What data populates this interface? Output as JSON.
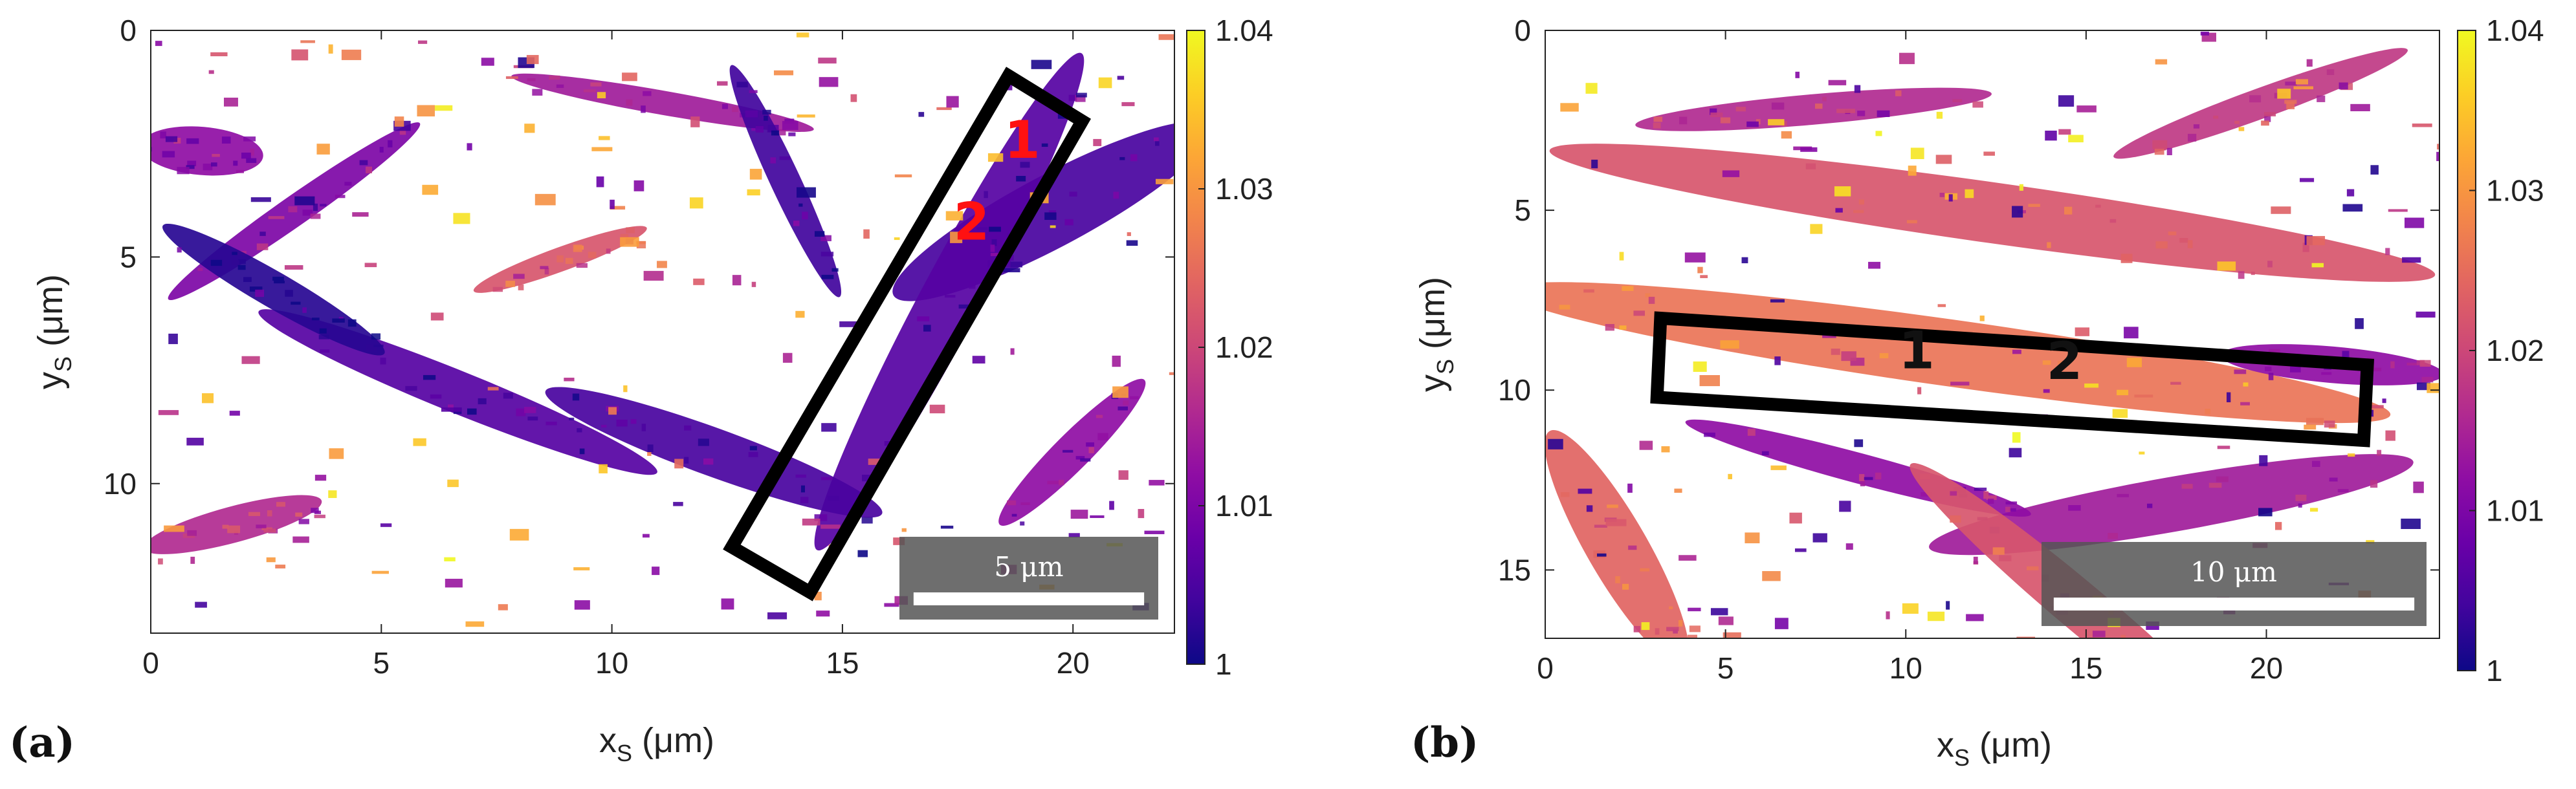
{
  "colors": {
    "text": "#222222",
    "marker_a": "#ff1111",
    "marker_b": "#111111",
    "scalebar_bg": "#555555",
    "colormap": [
      "#0d0887",
      "#41049d",
      "#6a00a8",
      "#8f0da4",
      "#b12a90",
      "#cc4778",
      "#e16462",
      "#f2844b",
      "#fca636",
      "#fcce25",
      "#f0f921"
    ]
  },
  "chart_data": [
    {
      "type": "heatmap",
      "panel_label": "(a)",
      "title": "",
      "xlabel": "x",
      "xlabel_sub": "S",
      "xlabel_unit": " (μm)",
      "ylabel": "y",
      "ylabel_sub": "S",
      "ylabel_unit": " (μm)",
      "xlim": [
        0,
        22.2
      ],
      "ylim": [
        0,
        13.3
      ],
      "y_inverted": true,
      "x_ticks": [
        "0",
        "5",
        "10",
        "15",
        "20"
      ],
      "y_ticks": [
        "0",
        "5",
        "10"
      ],
      "colorbar": {
        "range": [
          1,
          1.04
        ],
        "ticks": [
          "1",
          "1.01",
          "1.02",
          "1.03",
          "1.04"
        ],
        "colormap": "plasma"
      },
      "scale_bar": {
        "label": "5 μm",
        "length": 5
      },
      "highlight_box": [
        [
          18.6,
          1.0
        ],
        [
          20.2,
          2.0
        ],
        [
          14.3,
          12.4
        ],
        [
          12.6,
          11.4
        ]
      ],
      "box_markers": [
        {
          "label": "1",
          "x": 18.9,
          "y": 2.5
        },
        {
          "label": "2",
          "x": 17.8,
          "y": 4.3
        }
      ]
    },
    {
      "type": "heatmap",
      "panel_label": "(b)",
      "title": "",
      "xlabel": "x",
      "xlabel_sub": "S",
      "xlabel_unit": " (μm)",
      "ylabel": "y",
      "ylabel_sub": "S",
      "ylabel_unit": " (μm)",
      "xlim": [
        0,
        24.8
      ],
      "ylim": [
        0,
        16.9
      ],
      "y_inverted": true,
      "x_ticks": [
        "0",
        "5",
        "10",
        "15",
        "20"
      ],
      "y_ticks": [
        "0",
        "5",
        "10",
        "15"
      ],
      "colorbar": {
        "range": [
          1,
          1.04
        ],
        "ticks": [
          "1",
          "1.01",
          "1.02",
          "1.03",
          "1.04"
        ],
        "colormap": "plasma"
      },
      "scale_bar": {
        "label": "10 μm",
        "length": 10
      },
      "highlight_box": [
        [
          3.2,
          8.0
        ],
        [
          22.8,
          9.3
        ],
        [
          22.7,
          11.4
        ],
        [
          3.1,
          10.2
        ]
      ],
      "box_markers": [
        {
          "label": "1",
          "x": 10.3,
          "y": 9.0
        },
        {
          "label": "2",
          "x": 14.4,
          "y": 9.3
        }
      ]
    }
  ]
}
